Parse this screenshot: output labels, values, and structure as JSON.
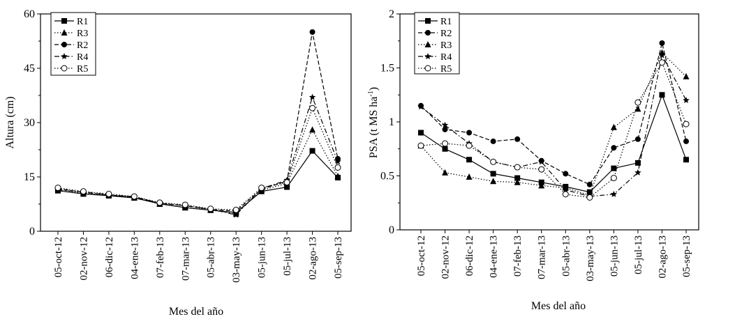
{
  "chart_data": [
    {
      "type": "line",
      "ylabel": "Altura (cm)",
      "xlabel": "Mes del año",
      "ylim": [
        0,
        60
      ],
      "yticks": [
        0,
        15,
        30,
        45,
        60
      ],
      "categories": [
        "05-oct-12",
        "02-nov-12",
        "06-dic-12",
        "04-ene-13",
        "07-feb-13",
        "07-mar-13",
        "05-abr-13",
        "03-may-13",
        "05-jun-13",
        "05-jul-13",
        "02-ago-13",
        "05-sep-13"
      ],
      "legend": [
        "R1",
        "R3",
        "R2",
        "R4",
        "R5"
      ],
      "legend_position": "top-left",
      "series": [
        {
          "name": "R1",
          "marker": "square",
          "dash": "solid",
          "values": [
            11.2,
            10.3,
            9.8,
            9.2,
            7.6,
            6.5,
            5.8,
            5.2,
            11.0,
            12.2,
            22.2,
            14.8
          ]
        },
        {
          "name": "R3",
          "marker": "triangle",
          "dash": "dotted",
          "values": [
            11.6,
            10.5,
            10.0,
            9.3,
            7.5,
            6.6,
            5.9,
            4.8,
            11.3,
            13.2,
            28.0,
            15.2
          ]
        },
        {
          "name": "R2",
          "marker": "circle-filled",
          "dash": "dashed",
          "values": [
            11.8,
            10.7,
            10.0,
            9.4,
            7.7,
            7.1,
            6.0,
            5.6,
            11.6,
            13.8,
            55.0,
            20.0
          ]
        },
        {
          "name": "R4",
          "marker": "star",
          "dash": "dashdot",
          "values": [
            11.4,
            10.8,
            10.1,
            9.5,
            7.8,
            7.0,
            6.1,
            4.5,
            11.8,
            14.1,
            37.0,
            19.2
          ]
        },
        {
          "name": "R5",
          "marker": "circle-open",
          "dash": "dotted",
          "values": [
            12.0,
            11.0,
            10.3,
            9.6,
            7.9,
            7.3,
            6.2,
            5.9,
            12.0,
            13.5,
            34.0,
            17.6
          ]
        }
      ]
    },
    {
      "type": "line",
      "ylabel": "PSA (t MS ha",
      "ylabel_sup": "-1",
      "ylabel_end": ")",
      "xlabel": "Mes del año",
      "ylim": [
        0,
        2
      ],
      "yticks": [
        0,
        0.5,
        1,
        1.5,
        2
      ],
      "categories": [
        "05-oct-12",
        "02-nov-12",
        "06-dic-12",
        "04-ene-13",
        "07-feb-13",
        "07-mar-13",
        "05-abr-13",
        "03-may-13",
        "05-jun-13",
        "05-jul-13",
        "02-ago-13",
        "05-sep-13"
      ],
      "legend": [
        "R1",
        "R2",
        "R3",
        "R4",
        "R5"
      ],
      "legend_position": "top-left",
      "series": [
        {
          "name": "R1",
          "marker": "square",
          "dash": "solid",
          "values": [
            0.9,
            0.75,
            0.65,
            0.52,
            0.48,
            0.44,
            0.4,
            0.35,
            0.57,
            0.62,
            1.25,
            0.65
          ]
        },
        {
          "name": "R2",
          "marker": "circle-filled",
          "dash": "dashed",
          "values": [
            1.15,
            0.93,
            0.9,
            0.82,
            0.84,
            0.64,
            0.52,
            0.42,
            0.76,
            0.84,
            1.73,
            0.82
          ]
        },
        {
          "name": "R3",
          "marker": "triangle",
          "dash": "dotted",
          "values": [
            0.78,
            0.53,
            0.49,
            0.45,
            0.44,
            0.41,
            0.39,
            0.32,
            0.95,
            1.12,
            1.64,
            1.42
          ]
        },
        {
          "name": "R4",
          "marker": "star",
          "dash": "dashdot",
          "values": [
            1.14,
            0.97,
            0.8,
            0.63,
            0.58,
            0.63,
            0.37,
            0.31,
            0.33,
            0.53,
            1.62,
            1.2
          ]
        },
        {
          "name": "R5",
          "marker": "circle-open",
          "dash": "dotted",
          "values": [
            0.78,
            0.8,
            0.78,
            0.63,
            0.58,
            0.56,
            0.33,
            0.3,
            0.48,
            1.18,
            1.55,
            0.98
          ]
        }
      ]
    }
  ]
}
